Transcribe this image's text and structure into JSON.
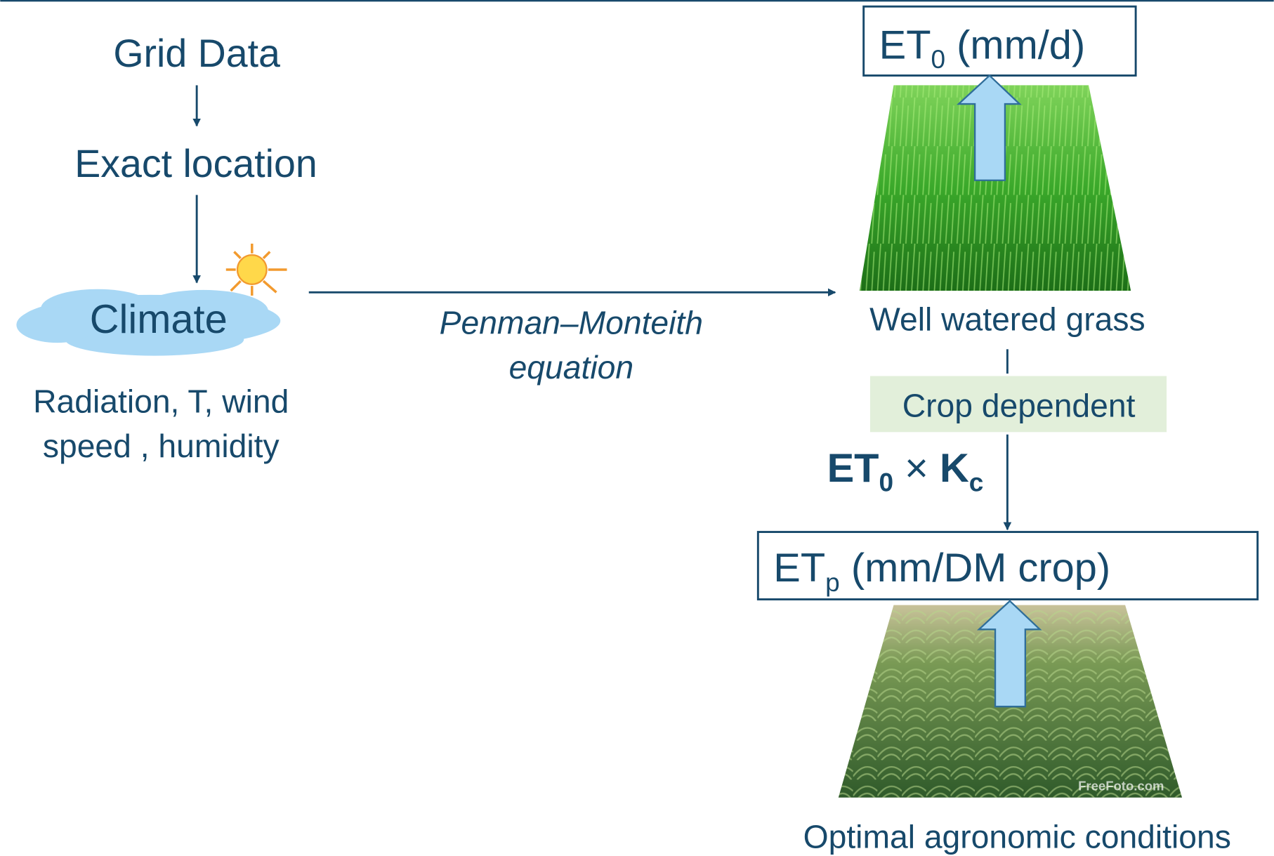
{
  "nodes": {
    "grid_data": {
      "label": "Grid Data"
    },
    "exact_location": {
      "label": "Exact location"
    },
    "climate": {
      "label": "Climate",
      "details": [
        "Radiation, T,  wind",
        "speed , humidity"
      ]
    },
    "method": {
      "lines": [
        "Penman–Monteith",
        "equation"
      ]
    },
    "et0": {
      "main": "ET",
      "sub": "0",
      "rest": " (mm/d)"
    },
    "grass": {
      "label": "Well watered grass"
    },
    "crop_dependent": {
      "label": "Crop dependent"
    },
    "formula": {
      "a": "ET",
      "a_sub": "0",
      "op": " × ",
      "b": "K",
      "b_sub": "c"
    },
    "etp": {
      "main": "ET",
      "sub": "p",
      "rest": " (mm/DM crop)"
    },
    "crop": {
      "label": "Optimal agronomic conditions",
      "watermark": "FreeFoto.com"
    }
  }
}
